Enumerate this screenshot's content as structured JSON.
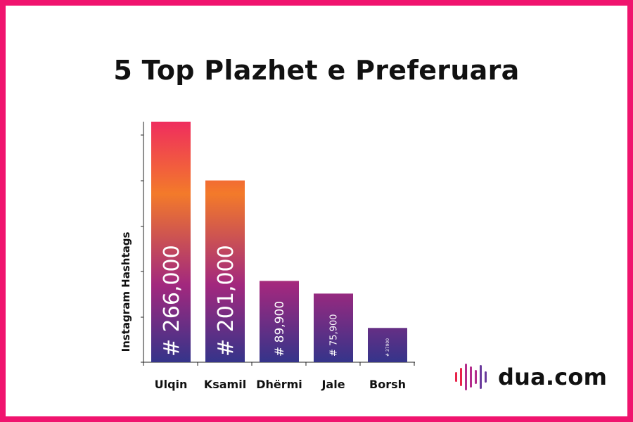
{
  "title": "5 Top Plazhet e Preferuara",
  "chart_data": {
    "type": "bar",
    "title": "5 Top Plazhet e Preferuara",
    "ylabel": "Instagram Hashtags",
    "xlabel": "",
    "categories": [
      "Ulqin",
      "Ksamil",
      "Dhërmi",
      "Jale",
      "Borsh"
    ],
    "values": [
      266000,
      201000,
      89900,
      75900,
      37900
    ],
    "data_labels": [
      "# 266,000",
      "# 201,000",
      "# 89,900",
      "# 75,900",
      "# 37900"
    ],
    "ylim": [
      0,
      266000
    ],
    "grid": false,
    "legend": "none",
    "colors": {
      "gradient_top": "#ef2d5e",
      "gradient_mid": "#f37a2a",
      "gradient_low": "#a2287e",
      "gradient_bottom": "#35348a",
      "short_bar_top": "#7a2a86"
    }
  },
  "logo": {
    "text": "dua.com",
    "colors": {
      "bar_warm": "#e8234a",
      "bar_mid": "#b42c8c",
      "bar_cool": "#6a3a9c"
    }
  },
  "frame_color": "#f0146e"
}
